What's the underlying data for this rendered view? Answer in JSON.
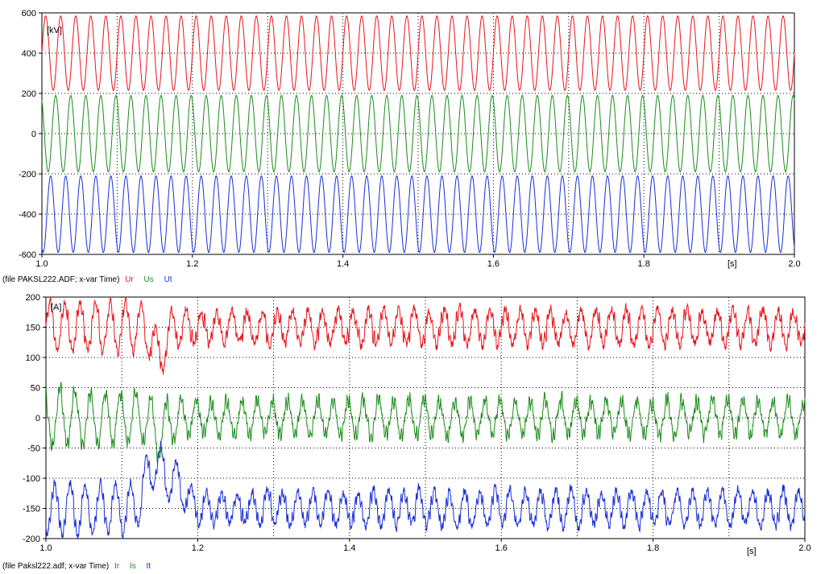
{
  "chart_data": [
    {
      "type": "line",
      "title": "",
      "xlabel": "",
      "ylabel": "",
      "unit_y": "[kV]",
      "unit_x": "[s]",
      "xlim": [
        1.0,
        2.0
      ],
      "ylim": [
        -600,
        600
      ],
      "x_ticks": [
        1.0,
        1.2,
        1.4,
        1.6,
        1.8,
        2.0
      ],
      "x_tick_labels": [
        "1.0",
        "1.2",
        "1.4",
        "1.6",
        "1.8",
        "2.0"
      ],
      "y_ticks": [
        -600,
        -400,
        -200,
        0,
        200,
        400,
        600
      ],
      "y_tick_labels": [
        "-600",
        "-400",
        "-200",
        "0",
        "200",
        "400",
        "600"
      ],
      "grid": true,
      "caption": {
        "file_label": "(file PAKSL222.ADF; x-var Time)",
        "legend": [
          "Ur",
          "Us",
          "Ut"
        ]
      },
      "series": [
        {
          "name": "Ur",
          "color": "#e8141b",
          "offset": 400,
          "amplitude": 185,
          "frequency_hz": 50,
          "phase": 0.0
        },
        {
          "name": "Us",
          "color": "#1a8c1a",
          "offset": 0,
          "amplitude": 190,
          "frequency_hz": 50,
          "phase": 2.094
        },
        {
          "name": "Ut",
          "color": "#1a2fd6",
          "offset": -400,
          "amplitude": 190,
          "frequency_hz": 50,
          "phase": 4.189
        }
      ]
    },
    {
      "type": "line",
      "title": "",
      "xlabel": "",
      "ylabel": "",
      "unit_y": "[A]",
      "unit_x": "[s]",
      "xlim": [
        1.0,
        2.0
      ],
      "ylim": [
        -200,
        200
      ],
      "x_ticks": [
        1.0,
        1.2,
        1.4,
        1.6,
        1.8,
        2.0
      ],
      "x_tick_labels": [
        "1.0",
        "1.2",
        "1.4",
        "1.6",
        "1.8",
        "2.0"
      ],
      "y_ticks": [
        -200,
        -150,
        -100,
        -50,
        0,
        50,
        100,
        150,
        200
      ],
      "y_tick_labels": [
        "-200",
        "-150",
        "-100",
        "-50",
        "0",
        "50",
        "100",
        "150",
        "200"
      ],
      "grid": true,
      "caption": {
        "file_label": "(file Paksl222.adf; x-var Time)",
        "legend": [
          "Ir",
          "Is",
          "It"
        ]
      },
      "series": [
        {
          "name": "Ir",
          "color": "#e8141b",
          "offset": 150,
          "amplitude": 32,
          "frequency_hz": 50,
          "phase": 0.0,
          "envelope": [
            [
              1.0,
              1.25
            ],
            [
              1.13,
              1.25
            ],
            [
              1.2,
              0.75
            ],
            [
              1.5,
              0.9
            ],
            [
              2.0,
              0.85
            ]
          ],
          "disturbance": [
            {
              "t": 1.15,
              "delta": -45,
              "width": 0.012
            }
          ]
        },
        {
          "name": "Is",
          "color": "#1a8c1a",
          "offset": 0,
          "amplitude": 30,
          "frequency_hz": 50,
          "phase": 2.094,
          "envelope": [
            [
              1.0,
              1.45
            ],
            [
              1.13,
              1.4
            ],
            [
              1.2,
              0.95
            ],
            [
              1.5,
              1.0
            ],
            [
              2.0,
              0.9
            ]
          ],
          "disturbance": [
            {
              "t": 1.15,
              "delta": -30,
              "width": 0.01
            }
          ]
        },
        {
          "name": "It",
          "color": "#1a2fd6",
          "offset": -150,
          "amplitude": 32,
          "frequency_hz": 50,
          "phase": 4.189,
          "envelope": [
            [
              1.0,
              1.3
            ],
            [
              1.13,
              1.3
            ],
            [
              1.2,
              0.75
            ],
            [
              1.5,
              0.9
            ],
            [
              2.0,
              0.85
            ]
          ],
          "disturbance": [
            {
              "t": 1.145,
              "delta": 75,
              "width": 0.018
            },
            {
              "t": 1.175,
              "delta": 35,
              "width": 0.014
            }
          ]
        }
      ]
    }
  ]
}
